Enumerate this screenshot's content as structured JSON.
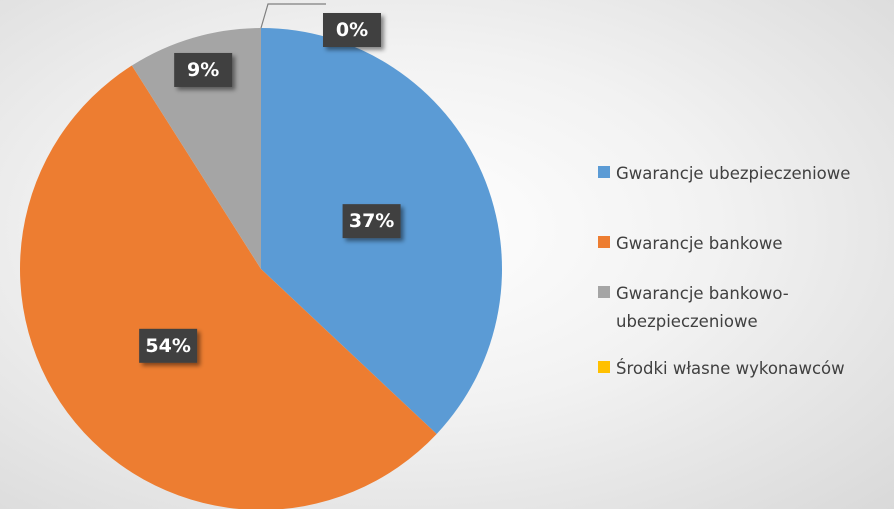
{
  "chart_data": {
    "type": "pie",
    "categories": [
      "Gwarancje ubezpieczeniowe",
      "Gwarancje bankowe",
      "Gwarancje bankowo-ubezpieczeniowe",
      "Środki własne wykonawców"
    ],
    "values": [
      37,
      54,
      9,
      0
    ],
    "value_labels": [
      "37%",
      "54%",
      "9%",
      "0%"
    ],
    "colors": [
      "#5b9bd5",
      "#ed7d31",
      "#a5a5a5",
      "#ffc000"
    ],
    "legend": "right"
  }
}
